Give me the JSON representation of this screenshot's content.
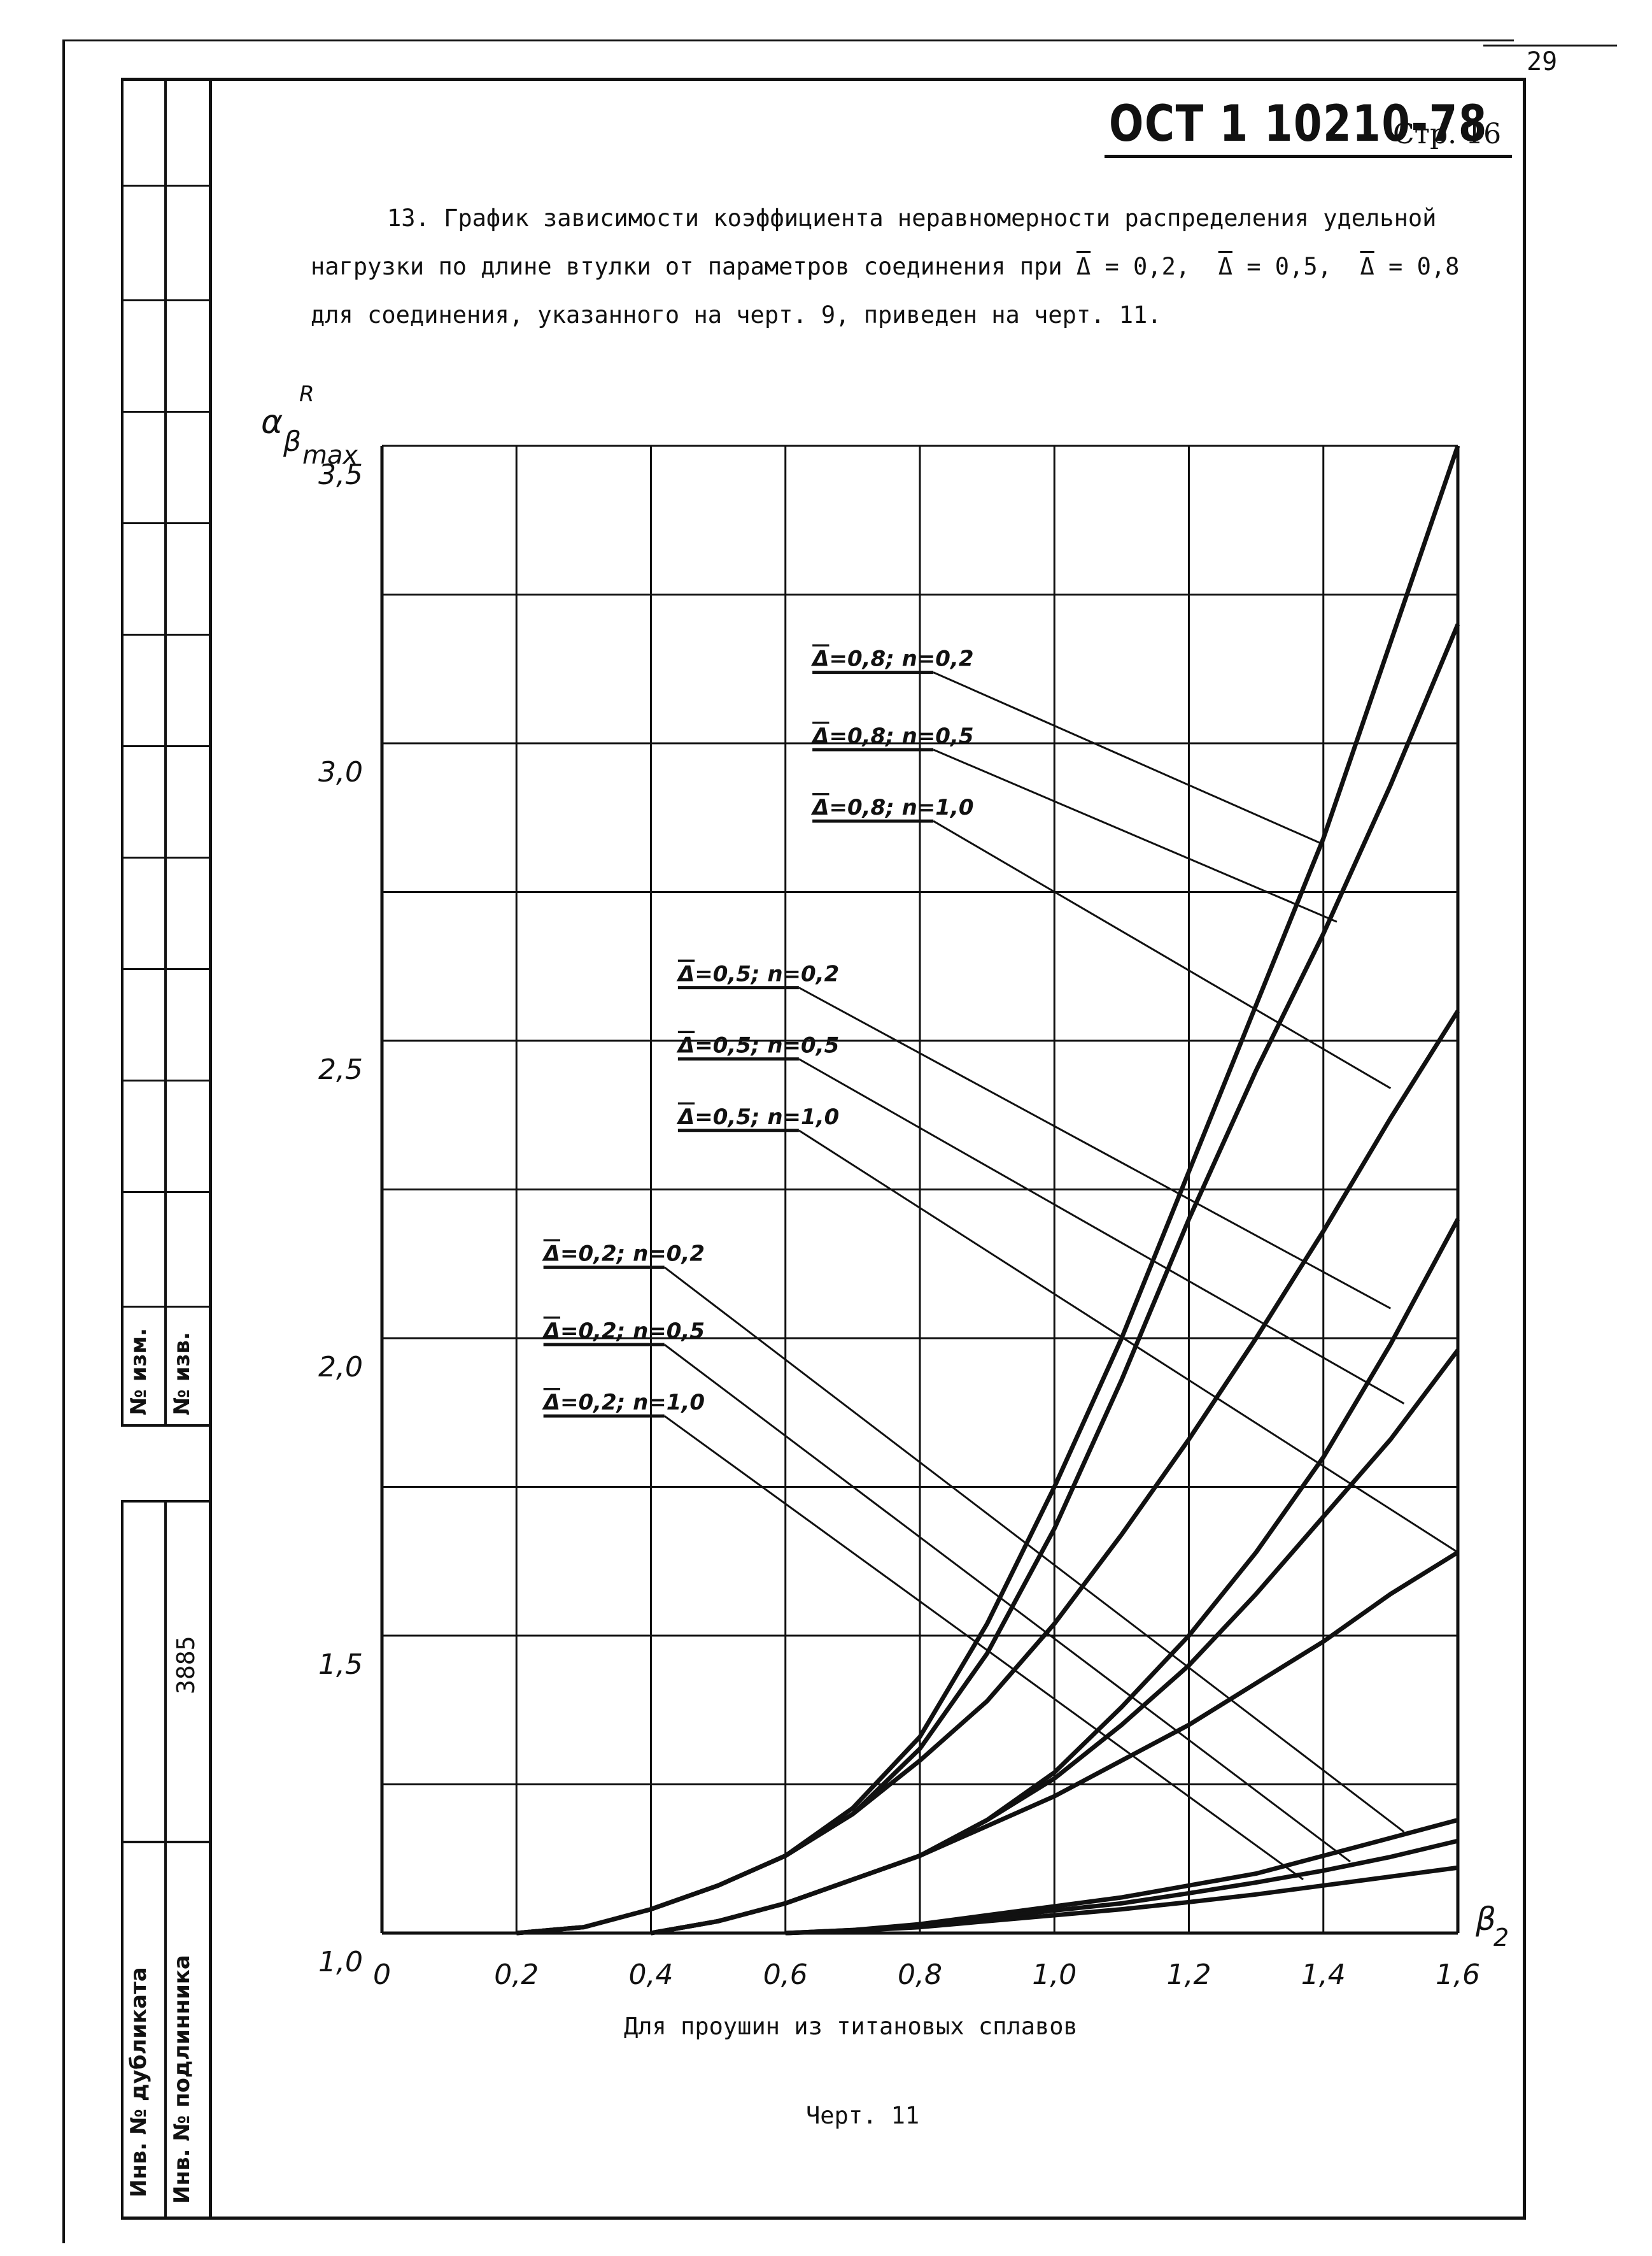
{
  "header": {
    "page_number": "29",
    "doc_id": "ОСТ 1 10210-78",
    "page_label": "Стр. 16"
  },
  "paragraph": {
    "line1": "13. График зависимости коэффициента неравномерности распределения удельной",
    "line2_pre": "нагрузки по длине втулки от параметров соединения при ",
    "line2_d1": "Δ = 0,2,",
    "line2_d2": "Δ = 0,5,",
    "line2_d3": "Δ = 0,8",
    "line3": "для соединения, указанного на черт. 9, приведен на черт. 11."
  },
  "side_stamp": {
    "rev_no_1": "№ изм.",
    "rev_no_2": "№ изв.",
    "dup_inv": "Инв. № дубликата",
    "orig_inv": "Инв. № подлинника",
    "inv_number": "3885"
  },
  "caption": {
    "subtitle": "Для проушин из титановых сплавов",
    "figure": "Черт. 11"
  },
  "chart_data": {
    "type": "line",
    "ylabel_main": "α",
    "ylabel_sup": "R",
    "ylabel_sub": "β",
    "ylabel_subsub": "max",
    "xlabel_main": "β",
    "xlabel_sub": "2",
    "xlim": [
      0,
      1.6
    ],
    "ylim": [
      1.0,
      3.5
    ],
    "grid": true,
    "x_ticks": [
      "0",
      "0,2",
      "0,4",
      "0,6",
      "0,8",
      "1,0",
      "1,2",
      "1,4",
      "1,6"
    ],
    "y_ticks": [
      "1,0",
      "1,5",
      "2,0",
      "2,5",
      "3,0",
      "3,5"
    ],
    "series": [
      {
        "name": "Δ=0,8; n=0,2",
        "label_prefix": "Δ",
        "label_rest": "=0,8; n=0,2",
        "leader_to": [
          1.4,
          2.83
        ],
        "points": [
          [
            0.2,
            1.0
          ],
          [
            0.3,
            1.01
          ],
          [
            0.4,
            1.04
          ],
          [
            0.5,
            1.08
          ],
          [
            0.6,
            1.13
          ],
          [
            0.7,
            1.21
          ],
          [
            0.8,
            1.33
          ],
          [
            0.9,
            1.52
          ],
          [
            1.0,
            1.75
          ],
          [
            1.1,
            2.0
          ],
          [
            1.2,
            2.28
          ],
          [
            1.3,
            2.56
          ],
          [
            1.4,
            2.84
          ],
          [
            1.5,
            3.17
          ],
          [
            1.6,
            3.5
          ]
        ]
      },
      {
        "name": "Δ=0,8; n=0,5",
        "label_prefix": "Δ",
        "label_rest": "=0,8; n=0,5",
        "leader_to": [
          1.42,
          2.7
        ],
        "points": [
          [
            0.2,
            1.0
          ],
          [
            0.3,
            1.01
          ],
          [
            0.4,
            1.04
          ],
          [
            0.5,
            1.08
          ],
          [
            0.6,
            1.13
          ],
          [
            0.7,
            1.2
          ],
          [
            0.8,
            1.31
          ],
          [
            0.9,
            1.47
          ],
          [
            1.0,
            1.68
          ],
          [
            1.1,
            1.93
          ],
          [
            1.2,
            2.2
          ],
          [
            1.3,
            2.45
          ],
          [
            1.4,
            2.68
          ],
          [
            1.5,
            2.93
          ],
          [
            1.6,
            3.2
          ]
        ]
      },
      {
        "name": "Δ=0,8; n=1,0",
        "label_prefix": "Δ",
        "label_rest": "=0,8; n=1,0",
        "leader_to": [
          1.5,
          2.42
        ],
        "points": [
          [
            0.2,
            1.0
          ],
          [
            0.3,
            1.01
          ],
          [
            0.4,
            1.04
          ],
          [
            0.5,
            1.08
          ],
          [
            0.6,
            1.13
          ],
          [
            0.7,
            1.2
          ],
          [
            0.8,
            1.29
          ],
          [
            0.9,
            1.39
          ],
          [
            1.0,
            1.52
          ],
          [
            1.1,
            1.67
          ],
          [
            1.2,
            1.83
          ],
          [
            1.3,
            2.0
          ],
          [
            1.4,
            2.18
          ],
          [
            1.5,
            2.37
          ],
          [
            1.6,
            2.55
          ]
        ]
      },
      {
        "name": "Δ=0,5; n=0,2",
        "label_prefix": "Δ",
        "label_rest": "=0,5; n=0,2",
        "leader_to": [
          1.5,
          2.05
        ],
        "points": [
          [
            0.4,
            1.0
          ],
          [
            0.5,
            1.02
          ],
          [
            0.6,
            1.05
          ],
          [
            0.7,
            1.09
          ],
          [
            0.8,
            1.13
          ],
          [
            0.9,
            1.19
          ],
          [
            1.0,
            1.27
          ],
          [
            1.1,
            1.38
          ],
          [
            1.2,
            1.5
          ],
          [
            1.3,
            1.64
          ],
          [
            1.4,
            1.8
          ],
          [
            1.5,
            1.99
          ],
          [
            1.6,
            2.2
          ]
        ]
      },
      {
        "name": "Δ=0,5; n=0,5",
        "label_prefix": "Δ",
        "label_rest": "=0,5; n=0,5",
        "leader_to": [
          1.52,
          1.89
        ],
        "points": [
          [
            0.4,
            1.0
          ],
          [
            0.5,
            1.02
          ],
          [
            0.6,
            1.05
          ],
          [
            0.7,
            1.09
          ],
          [
            0.8,
            1.13
          ],
          [
            0.9,
            1.19
          ],
          [
            1.0,
            1.26
          ],
          [
            1.1,
            1.35
          ],
          [
            1.2,
            1.45
          ],
          [
            1.3,
            1.57
          ],
          [
            1.4,
            1.7
          ],
          [
            1.5,
            1.83
          ],
          [
            1.6,
            1.98
          ]
        ]
      },
      {
        "name": "Δ=0,5; n=1,0",
        "label_prefix": "Δ",
        "label_rest": "=0,5; n=1,0",
        "leader_to": [
          1.6,
          1.64
        ],
        "points": [
          [
            0.4,
            1.0
          ],
          [
            0.5,
            1.02
          ],
          [
            0.6,
            1.05
          ],
          [
            0.7,
            1.09
          ],
          [
            0.8,
            1.13
          ],
          [
            0.9,
            1.18
          ],
          [
            1.0,
            1.23
          ],
          [
            1.1,
            1.29
          ],
          [
            1.2,
            1.35
          ],
          [
            1.3,
            1.42
          ],
          [
            1.4,
            1.49
          ],
          [
            1.5,
            1.57
          ],
          [
            1.6,
            1.64
          ]
        ]
      },
      {
        "name": "Δ=0,2; n=0,2",
        "label_prefix": "Δ",
        "label_rest": "=0,2; n=0,2",
        "leader_to": [
          1.52,
          1.17
        ],
        "points": [
          [
            0.6,
            1.0
          ],
          [
            0.7,
            1.005
          ],
          [
            0.8,
            1.015
          ],
          [
            0.9,
            1.03
          ],
          [
            1.0,
            1.045
          ],
          [
            1.1,
            1.06
          ],
          [
            1.2,
            1.08
          ],
          [
            1.3,
            1.1
          ],
          [
            1.4,
            1.13
          ],
          [
            1.5,
            1.16
          ],
          [
            1.6,
            1.19
          ]
        ]
      },
      {
        "name": "Δ=0,2; n=0,5",
        "label_prefix": "Δ",
        "label_rest": "=0,2; n=0,5",
        "leader_to": [
          1.44,
          1.12
        ],
        "points": [
          [
            0.6,
            1.0
          ],
          [
            0.7,
            1.005
          ],
          [
            0.8,
            1.013
          ],
          [
            0.9,
            1.025
          ],
          [
            1.0,
            1.038
          ],
          [
            1.1,
            1.05
          ],
          [
            1.2,
            1.067
          ],
          [
            1.3,
            1.085
          ],
          [
            1.4,
            1.105
          ],
          [
            1.5,
            1.128
          ],
          [
            1.6,
            1.155
          ]
        ]
      },
      {
        "name": "Δ=0,2; n=1,0",
        "label_prefix": "Δ",
        "label_rest": "=0,2; n=1,0",
        "leader_to": [
          1.37,
          1.09
        ],
        "points": [
          [
            0.6,
            1.0
          ],
          [
            0.7,
            1.004
          ],
          [
            0.8,
            1.01
          ],
          [
            0.9,
            1.02
          ],
          [
            1.0,
            1.03
          ],
          [
            1.1,
            1.04
          ],
          [
            1.2,
            1.052
          ],
          [
            1.3,
            1.065
          ],
          [
            1.4,
            1.08
          ],
          [
            1.5,
            1.095
          ],
          [
            1.6,
            1.11
          ]
        ]
      }
    ]
  }
}
